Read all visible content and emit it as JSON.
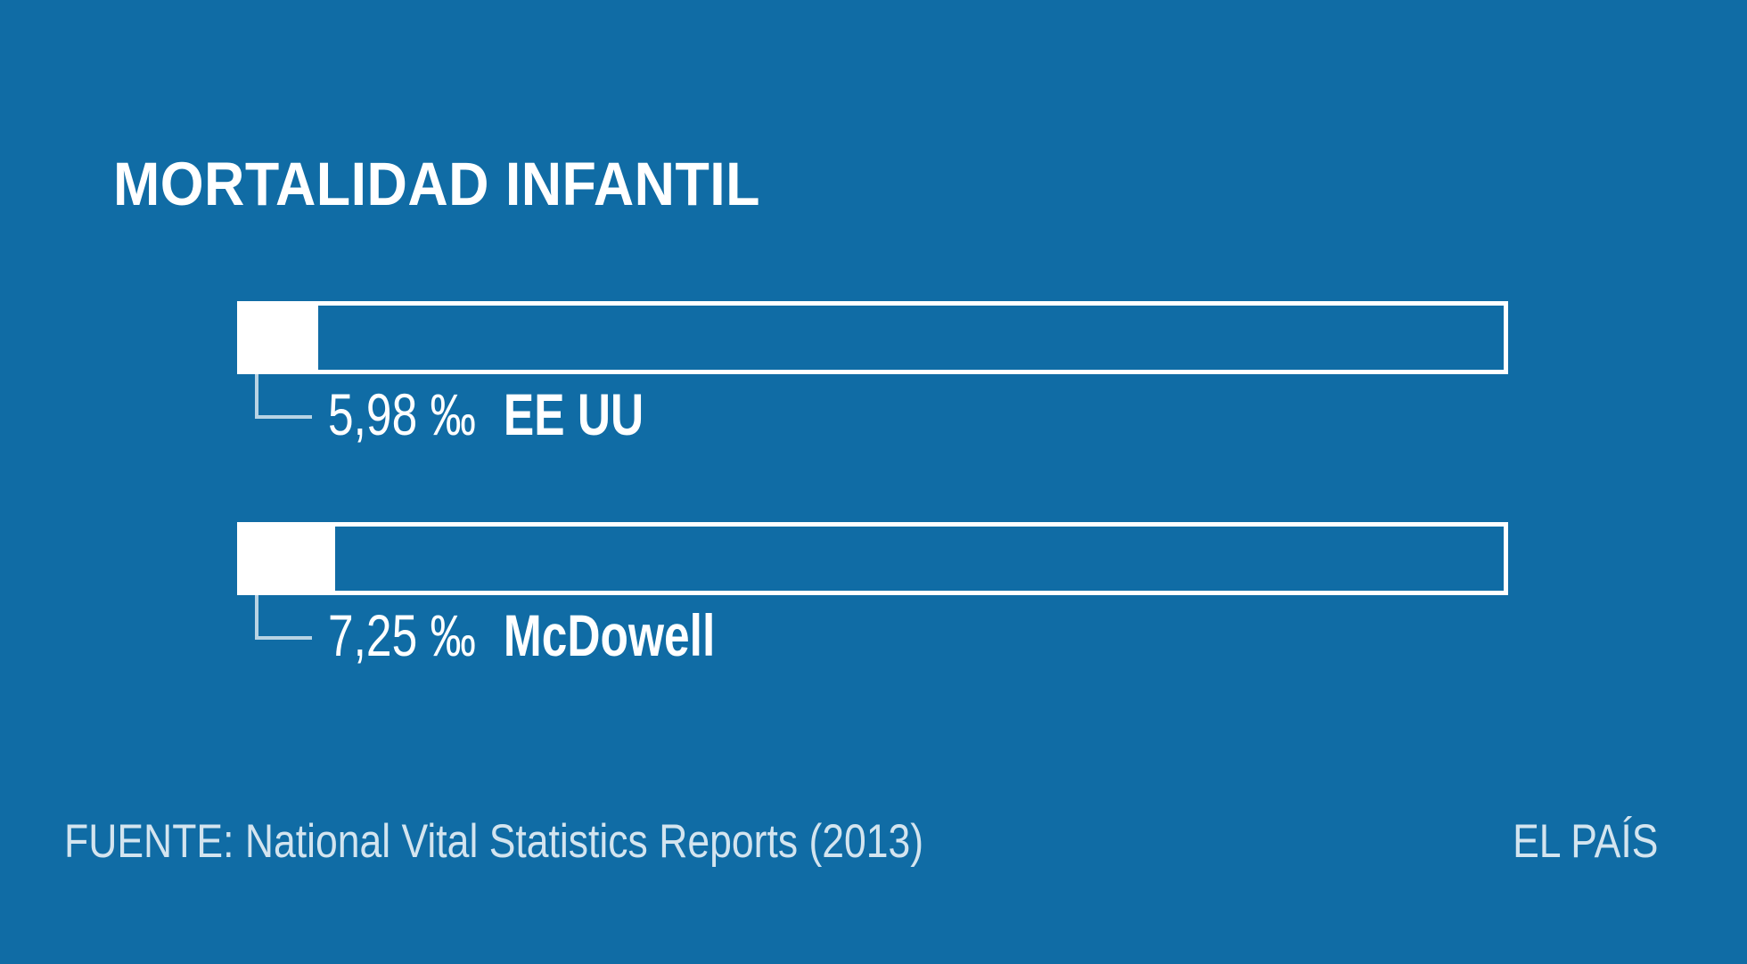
{
  "chart": {
    "title": "MORTALIDAD INFANTIL"
  },
  "chart_data": {
    "type": "bar",
    "orientation": "horizontal",
    "title": "MORTALIDAD INFANTIL",
    "categories": [
      "EE UU",
      "McDowell"
    ],
    "values": [
      5.98,
      7.25
    ],
    "value_labels": [
      "5,98 ‰",
      "7,25 ‰"
    ],
    "unit": "‰",
    "xlim": [
      0,
      94
    ],
    "grid": false,
    "legend": false,
    "source": "FUENTE: National Vital Statistics Reports (2013)",
    "brand": "EL PAÍS"
  },
  "rows": [
    {
      "value": "5,98 ‰",
      "label": "EE UU"
    },
    {
      "value": "7,25 ‰",
      "label": "McDowell"
    }
  ],
  "footer": {
    "source": "FUENTE: National Vital Statistics Reports (2013)",
    "brand": "EL PAÍS"
  },
  "colors": {
    "background": "#106CA5",
    "bar_outline": "#FFFFFF",
    "bar_fill": "#FFFFFF",
    "text": "#FFFFFF",
    "connector": "rgba(255,255,255,0.70)"
  }
}
